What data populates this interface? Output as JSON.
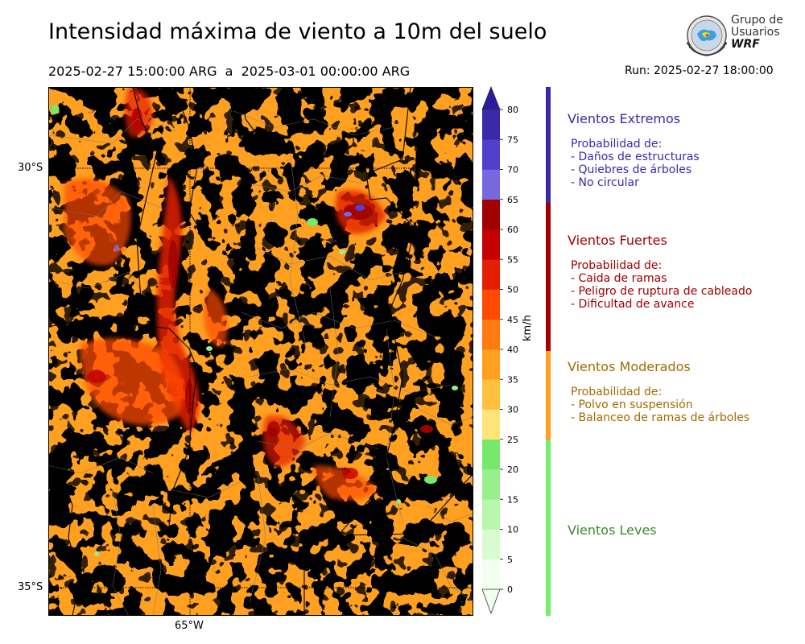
{
  "header": {
    "title": "Intensidad máxima de viento a 10m del suelo",
    "period": "2025-02-27 15:00:00 ARG  a  2025-03-01 00:00:00 ARG",
    "run": "Run: 2025-02-27 18:00:00"
  },
  "logo": {
    "line1": "Grupo de",
    "line2": "Usuarios",
    "line3": "WRF"
  },
  "map": {
    "lat_labels": [
      "30°S",
      "35°S"
    ],
    "lon_labels": [
      "65°W"
    ]
  },
  "colorbar": {
    "unit": "km/h",
    "ticks": [
      "0",
      "5",
      "10",
      "15",
      "20",
      "25",
      "30",
      "35",
      "40",
      "45",
      "50",
      "55",
      "60",
      "65",
      "70",
      "75",
      "80"
    ],
    "colors": [
      "#f2fff0",
      "#d8fbd0",
      "#b8f6ac",
      "#98ef8c",
      "#76e86c",
      "#ffe47a",
      "#ffc040",
      "#ffa020",
      "#ff7a10",
      "#ff4a00",
      "#e41e00",
      "#c40000",
      "#a00000",
      "#7868e0",
      "#5040cc",
      "#3a2aa8"
    ],
    "top_color": "#2c1aa0"
  },
  "legend": [
    {
      "title": "Vientos Extremos",
      "color": "#3a2aaa",
      "lines": [
        "Probabilidad de:",
        "- Daños de estructuras",
        "- Quiebres de árboles",
        "- No circular"
      ]
    },
    {
      "title": "Vientos Fuertes",
      "color": "#a30000",
      "lines": [
        "Probabilidad de:",
        "- Caida de ramas",
        "- Peligro de ruptura de cableado",
        "- Dificultad de avance"
      ]
    },
    {
      "title": "Vientos Moderados",
      "color": "#a56a00",
      "lines": [
        "Probabilidad de:",
        "- Polvo en suspensión",
        "- Balanceo de ramas de árboles"
      ]
    },
    {
      "title": "Vientos Leves",
      "color": "#3c8a30",
      "lines": []
    }
  ],
  "legend_bar_colors": [
    "#3a2aaa",
    "#a30000",
    "#ffa020",
    "#76ef6c"
  ]
}
